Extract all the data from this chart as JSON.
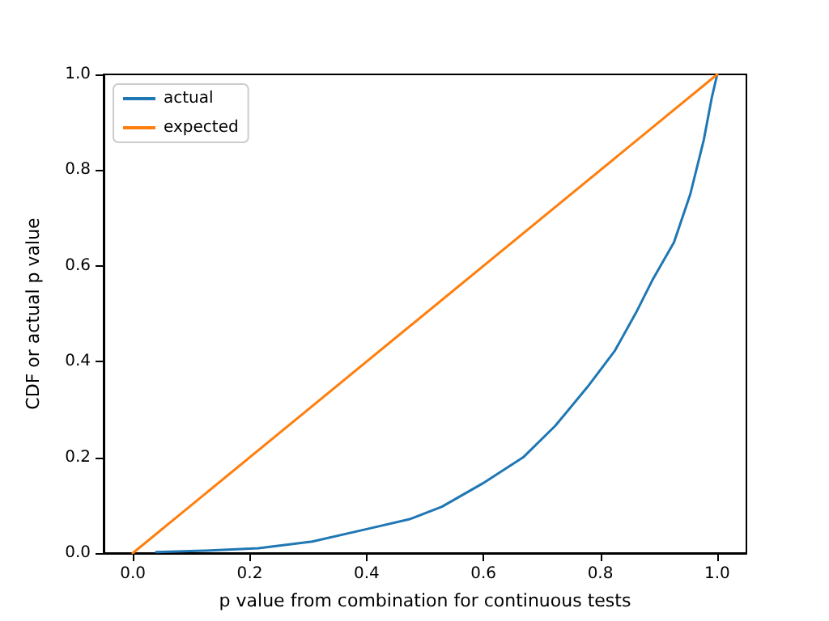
{
  "chart_data": {
    "type": "line",
    "xlabel": "p value from combination for continuous tests",
    "ylabel": "CDF or actual p value",
    "xlim": [
      -0.05,
      1.05
    ],
    "xticks": [
      {
        "value": 0,
        "label": "0.0"
      },
      0.2,
      0.4,
      0.6,
      0.8,
      {
        "value": 1,
        "label": "1.0"
      }
    ],
    "ylim": [
      0,
      1
    ],
    "yticks": [
      {
        "value": 0,
        "label": "0.0"
      },
      0.2,
      0.4,
      0.6,
      0.8,
      {
        "value": 1,
        "label": "1.0"
      }
    ],
    "grid": false,
    "legend": "top left",
    "marker": "none",
    "line_style": "solid",
    "series": [
      {
        "name": "actual",
        "color": "#1f77b4",
        "x": [
          0.04,
          0.123,
          0.215,
          0.307,
          0.4,
          0.474,
          0.529,
          0.598,
          0.668,
          0.723,
          0.778,
          0.825,
          0.861,
          0.889,
          0.926,
          0.954,
          0.977,
          0.991,
          1.0
        ],
        "values": [
          0.002,
          0.005,
          0.01,
          0.024,
          0.05,
          0.071,
          0.097,
          0.145,
          0.2,
          0.266,
          0.347,
          0.423,
          0.502,
          0.57,
          0.649,
          0.75,
          0.863,
          0.953,
          1.0
        ]
      },
      {
        "name": "expected",
        "color": "#ff7f0e",
        "x": [
          0.0,
          1.0
        ],
        "values": [
          0.0,
          1.0
        ]
      }
    ]
  }
}
